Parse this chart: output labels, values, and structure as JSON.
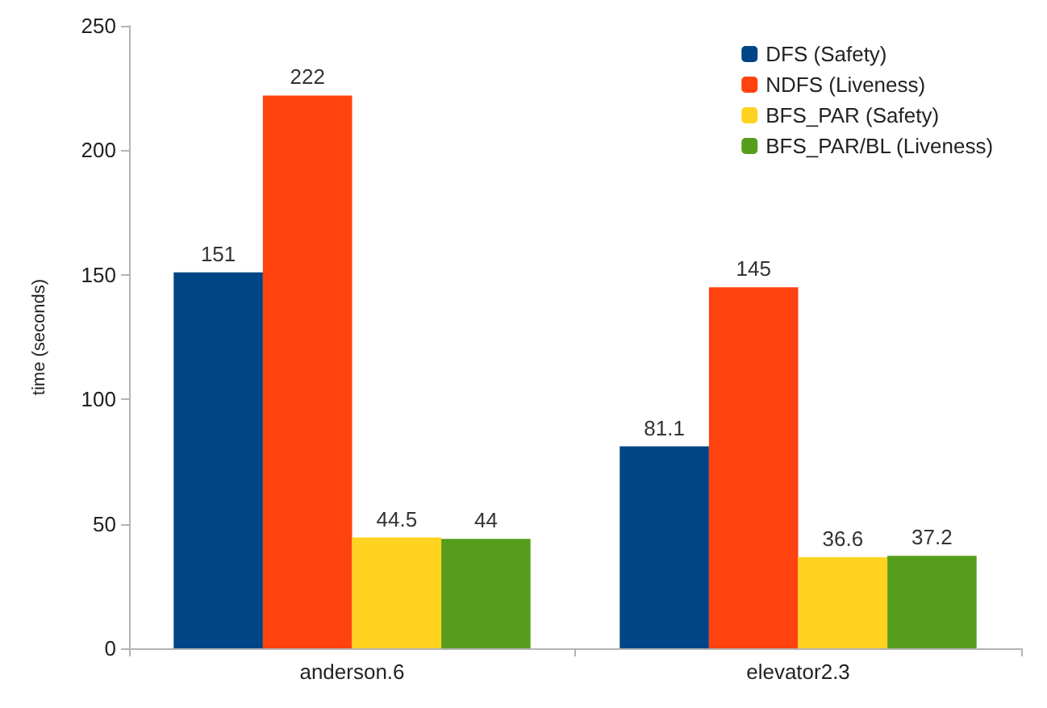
{
  "chart_data": {
    "type": "bar",
    "ylabel": "time (seconds)",
    "categories": [
      "anderson.6",
      "elevator2.3"
    ],
    "series": [
      {
        "name": "DFS (Safety)",
        "color": "#004586",
        "values": [
          151,
          81.1
        ]
      },
      {
        "name": "NDFS (Liveness)",
        "color": "#ff420e",
        "values": [
          222,
          145
        ]
      },
      {
        "name": "BFS_PAR (Safety)",
        "color": "#ffd320",
        "values": [
          44.5,
          36.6
        ]
      },
      {
        "name": "BFS_PAR/BL (Liveness)",
        "color": "#579d1c",
        "values": [
          44,
          37.2
        ]
      }
    ],
    "ylim": [
      0,
      250
    ],
    "yticks": [
      0,
      50,
      100,
      150,
      200,
      250
    ],
    "grid": false,
    "legend": "top right",
    "data_labels": true
  }
}
